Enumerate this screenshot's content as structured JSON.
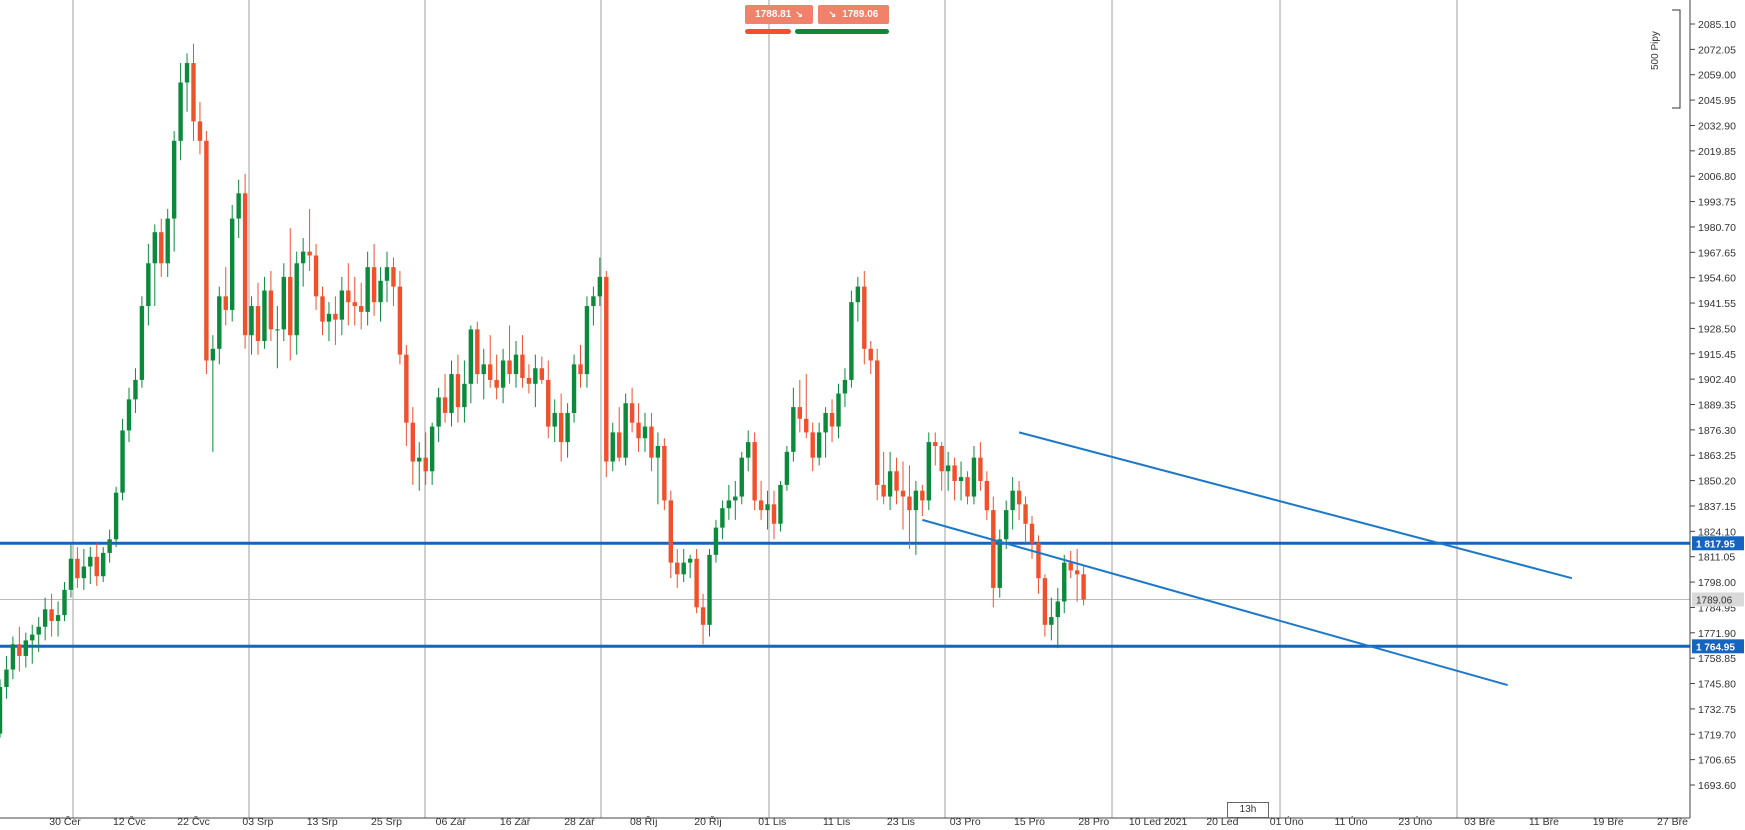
{
  "quotes": {
    "sell": {
      "value": "1788.81",
      "arrow": "↘"
    },
    "buy": {
      "value": "1789.06",
      "arrow": "↘"
    }
  },
  "colors": {
    "bull": "#0a8a3a",
    "bear": "#f0502a",
    "level_line": "#1565c0",
    "trend_line": "#1e78c8",
    "grid": "#888888",
    "current_price": "#bbbbbb",
    "sell_bar": "#f0502a",
    "buy_bar": "#0a8a3a"
  },
  "timeframe": "13h",
  "pip_scale": "500 Pipy",
  "chart_data": {
    "type": "candlestick",
    "y_ticks": [
      "2085.10",
      "2072.05",
      "2059.00",
      "2045.95",
      "2032.90",
      "2019.85",
      "2006.80",
      "1993.75",
      "1980.70",
      "1967.65",
      "1954.60",
      "1941.55",
      "1928.50",
      "1915.45",
      "1902.40",
      "1889.35",
      "1876.30",
      "1863.25",
      "1850.20",
      "1837.15",
      "1824.10",
      "1811.05",
      "1798.00",
      "1784.95",
      "1771.90",
      "1758.85",
      "1745.80",
      "1732.75",
      "1719.70",
      "1706.65",
      "1693.60"
    ],
    "x_labels": [
      "30 Čer",
      "12 Čvc",
      "22 Čvc",
      "03 Srp",
      "13 Srp",
      "25 Srp",
      "06 Zář",
      "16 Zář",
      "28 Zář",
      "08 Říj",
      "20 Říj",
      "01 Lis",
      "11 Lis",
      "23 Lis",
      "03 Pro",
      "15 Pro",
      "28 Pro",
      "10 Led 2021",
      "20 Led",
      "01 Úno",
      "11 Úno",
      "23 Úno",
      "03 Bře",
      "11 Bře",
      "19 Bře",
      "27 Bře"
    ],
    "levels": [
      {
        "label": "1 817.95",
        "value": 1817.95
      },
      {
        "label": "1 764.95",
        "value": 1764.95
      }
    ],
    "current_price": {
      "label": "1789.06",
      "value": 1789.06
    },
    "candles": [
      {
        "o": 1720,
        "h": 1748,
        "l": 1718,
        "c": 1744
      },
      {
        "o": 1744,
        "h": 1760,
        "l": 1738,
        "c": 1753
      },
      {
        "o": 1753,
        "h": 1770,
        "l": 1748,
        "c": 1766
      },
      {
        "o": 1766,
        "h": 1775,
        "l": 1752,
        "c": 1760
      },
      {
        "o": 1760,
        "h": 1772,
        "l": 1754,
        "c": 1768
      },
      {
        "o": 1768,
        "h": 1776,
        "l": 1756,
        "c": 1771
      },
      {
        "o": 1771,
        "h": 1780,
        "l": 1762,
        "c": 1775
      },
      {
        "o": 1775,
        "h": 1790,
        "l": 1768,
        "c": 1784
      },
      {
        "o": 1784,
        "h": 1792,
        "l": 1770,
        "c": 1778
      },
      {
        "o": 1778,
        "h": 1788,
        "l": 1770,
        "c": 1781
      },
      {
        "o": 1781,
        "h": 1798,
        "l": 1778,
        "c": 1794
      },
      {
        "o": 1794,
        "h": 1818,
        "l": 1790,
        "c": 1810
      },
      {
        "o": 1810,
        "h": 1816,
        "l": 1795,
        "c": 1800
      },
      {
        "o": 1800,
        "h": 1815,
        "l": 1794,
        "c": 1806
      },
      {
        "o": 1806,
        "h": 1816,
        "l": 1797,
        "c": 1811
      },
      {
        "o": 1811,
        "h": 1818,
        "l": 1796,
        "c": 1801
      },
      {
        "o": 1801,
        "h": 1816,
        "l": 1798,
        "c": 1813
      },
      {
        "o": 1813,
        "h": 1825,
        "l": 1808,
        "c": 1820
      },
      {
        "o": 1820,
        "h": 1847,
        "l": 1816,
        "c": 1844
      },
      {
        "o": 1844,
        "h": 1882,
        "l": 1840,
        "c": 1876
      },
      {
        "o": 1876,
        "h": 1898,
        "l": 1870,
        "c": 1892
      },
      {
        "o": 1892,
        "h": 1908,
        "l": 1885,
        "c": 1902
      },
      {
        "o": 1902,
        "h": 1945,
        "l": 1898,
        "c": 1940
      },
      {
        "o": 1940,
        "h": 1972,
        "l": 1930,
        "c": 1962
      },
      {
        "o": 1962,
        "h": 1982,
        "l": 1940,
        "c": 1978
      },
      {
        "o": 1978,
        "h": 1985,
        "l": 1955,
        "c": 1962
      },
      {
        "o": 1962,
        "h": 1990,
        "l": 1955,
        "c": 1985
      },
      {
        "o": 1985,
        "h": 2030,
        "l": 1968,
        "c": 2025
      },
      {
        "o": 2025,
        "h": 2065,
        "l": 2015,
        "c": 2055
      },
      {
        "o": 2055,
        "h": 2070,
        "l": 2040,
        "c": 2065
      },
      {
        "o": 2065,
        "h": 2075,
        "l": 2025,
        "c": 2035
      },
      {
        "o": 2035,
        "h": 2045,
        "l": 2018,
        "c": 2025
      },
      {
        "o": 2025,
        "h": 2030,
        "l": 1905,
        "c": 1912
      },
      {
        "o": 1912,
        "h": 1925,
        "l": 1865,
        "c": 1918
      },
      {
        "o": 1918,
        "h": 1950,
        "l": 1910,
        "c": 1945
      },
      {
        "o": 1945,
        "h": 1960,
        "l": 1930,
        "c": 1938
      },
      {
        "o": 1938,
        "h": 1992,
        "l": 1932,
        "c": 1985
      },
      {
        "o": 1985,
        "h": 2005,
        "l": 1975,
        "c": 1998
      },
      {
        "o": 1998,
        "h": 2008,
        "l": 1918,
        "c": 1925
      },
      {
        "o": 1925,
        "h": 1945,
        "l": 1915,
        "c": 1940
      },
      {
        "o": 1940,
        "h": 1952,
        "l": 1915,
        "c": 1922
      },
      {
        "o": 1922,
        "h": 1955,
        "l": 1918,
        "c": 1948
      },
      {
        "o": 1948,
        "h": 1958,
        "l": 1922,
        "c": 1928
      },
      {
        "o": 1928,
        "h": 1940,
        "l": 1908,
        "c": 1928
      },
      {
        "o": 1928,
        "h": 1962,
        "l": 1922,
        "c": 1955
      },
      {
        "o": 1955,
        "h": 1980,
        "l": 1912,
        "c": 1925
      },
      {
        "o": 1925,
        "h": 1968,
        "l": 1915,
        "c": 1962
      },
      {
        "o": 1962,
        "h": 1975,
        "l": 1950,
        "c": 1968
      },
      {
        "o": 1968,
        "h": 1990,
        "l": 1958,
        "c": 1966
      },
      {
        "o": 1966,
        "h": 1972,
        "l": 1938,
        "c": 1945
      },
      {
        "o": 1945,
        "h": 1950,
        "l": 1925,
        "c": 1932
      },
      {
        "o": 1932,
        "h": 1942,
        "l": 1922,
        "c": 1936
      },
      {
        "o": 1936,
        "h": 1945,
        "l": 1920,
        "c": 1933
      },
      {
        "o": 1933,
        "h": 1955,
        "l": 1925,
        "c": 1948
      },
      {
        "o": 1948,
        "h": 1962,
        "l": 1930,
        "c": 1942
      },
      {
        "o": 1942,
        "h": 1955,
        "l": 1930,
        "c": 1940
      },
      {
        "o": 1940,
        "h": 1952,
        "l": 1928,
        "c": 1937
      },
      {
        "o": 1937,
        "h": 1968,
        "l": 1930,
        "c": 1960
      },
      {
        "o": 1960,
        "h": 1972,
        "l": 1935,
        "c": 1942
      },
      {
        "o": 1942,
        "h": 1960,
        "l": 1932,
        "c": 1953
      },
      {
        "o": 1953,
        "h": 1968,
        "l": 1942,
        "c": 1960
      },
      {
        "o": 1960,
        "h": 1965,
        "l": 1940,
        "c": 1950
      },
      {
        "o": 1950,
        "h": 1958,
        "l": 1910,
        "c": 1915
      },
      {
        "o": 1915,
        "h": 1920,
        "l": 1868,
        "c": 1880
      },
      {
        "o": 1880,
        "h": 1888,
        "l": 1848,
        "c": 1860
      },
      {
        "o": 1860,
        "h": 1870,
        "l": 1845,
        "c": 1862
      },
      {
        "o": 1862,
        "h": 1875,
        "l": 1848,
        "c": 1855
      },
      {
        "o": 1855,
        "h": 1880,
        "l": 1848,
        "c": 1878
      },
      {
        "o": 1878,
        "h": 1898,
        "l": 1870,
        "c": 1893
      },
      {
        "o": 1893,
        "h": 1905,
        "l": 1880,
        "c": 1885
      },
      {
        "o": 1885,
        "h": 1912,
        "l": 1878,
        "c": 1905
      },
      {
        "o": 1905,
        "h": 1915,
        "l": 1880,
        "c": 1888
      },
      {
        "o": 1888,
        "h": 1912,
        "l": 1880,
        "c": 1900
      },
      {
        "o": 1900,
        "h": 1930,
        "l": 1890,
        "c": 1928
      },
      {
        "o": 1928,
        "h": 1932,
        "l": 1900,
        "c": 1905
      },
      {
        "o": 1905,
        "h": 1918,
        "l": 1892,
        "c": 1910
      },
      {
        "o": 1910,
        "h": 1925,
        "l": 1898,
        "c": 1902
      },
      {
        "o": 1902,
        "h": 1915,
        "l": 1892,
        "c": 1898
      },
      {
        "o": 1898,
        "h": 1918,
        "l": 1890,
        "c": 1912
      },
      {
        "o": 1912,
        "h": 1930,
        "l": 1900,
        "c": 1905
      },
      {
        "o": 1905,
        "h": 1922,
        "l": 1898,
        "c": 1915
      },
      {
        "o": 1915,
        "h": 1925,
        "l": 1898,
        "c": 1903
      },
      {
        "o": 1903,
        "h": 1910,
        "l": 1895,
        "c": 1900
      },
      {
        "o": 1900,
        "h": 1915,
        "l": 1888,
        "c": 1908
      },
      {
        "o": 1908,
        "h": 1914,
        "l": 1900,
        "c": 1902
      },
      {
        "o": 1902,
        "h": 1912,
        "l": 1872,
        "c": 1878
      },
      {
        "o": 1878,
        "h": 1892,
        "l": 1870,
        "c": 1885
      },
      {
        "o": 1885,
        "h": 1895,
        "l": 1860,
        "c": 1870
      },
      {
        "o": 1870,
        "h": 1890,
        "l": 1862,
        "c": 1885
      },
      {
        "o": 1885,
        "h": 1915,
        "l": 1880,
        "c": 1910
      },
      {
        "o": 1910,
        "h": 1920,
        "l": 1898,
        "c": 1905
      },
      {
        "o": 1905,
        "h": 1945,
        "l": 1898,
        "c": 1940
      },
      {
        "o": 1940,
        "h": 1950,
        "l": 1930,
        "c": 1945
      },
      {
        "o": 1945,
        "h": 1965,
        "l": 1940,
        "c": 1955
      },
      {
        "o": 1955,
        "h": 1958,
        "l": 1852,
        "c": 1860
      },
      {
        "o": 1860,
        "h": 1880,
        "l": 1855,
        "c": 1875
      },
      {
        "o": 1875,
        "h": 1888,
        "l": 1860,
        "c": 1862
      },
      {
        "o": 1862,
        "h": 1895,
        "l": 1858,
        "c": 1890
      },
      {
        "o": 1890,
        "h": 1898,
        "l": 1875,
        "c": 1880
      },
      {
        "o": 1880,
        "h": 1890,
        "l": 1865,
        "c": 1872
      },
      {
        "o": 1872,
        "h": 1885,
        "l": 1865,
        "c": 1878
      },
      {
        "o": 1878,
        "h": 1885,
        "l": 1855,
        "c": 1862
      },
      {
        "o": 1862,
        "h": 1875,
        "l": 1838,
        "c": 1868
      },
      {
        "o": 1868,
        "h": 1872,
        "l": 1835,
        "c": 1840
      },
      {
        "o": 1840,
        "h": 1845,
        "l": 1800,
        "c": 1808
      },
      {
        "o": 1808,
        "h": 1815,
        "l": 1795,
        "c": 1802
      },
      {
        "o": 1802,
        "h": 1815,
        "l": 1798,
        "c": 1808
      },
      {
        "o": 1808,
        "h": 1812,
        "l": 1800,
        "c": 1810
      },
      {
        "o": 1810,
        "h": 1815,
        "l": 1782,
        "c": 1785
      },
      {
        "o": 1785,
        "h": 1792,
        "l": 1766,
        "c": 1776
      },
      {
        "o": 1776,
        "h": 1815,
        "l": 1770,
        "c": 1812
      },
      {
        "o": 1812,
        "h": 1830,
        "l": 1808,
        "c": 1826
      },
      {
        "o": 1826,
        "h": 1840,
        "l": 1820,
        "c": 1836
      },
      {
        "o": 1836,
        "h": 1848,
        "l": 1830,
        "c": 1840
      },
      {
        "o": 1840,
        "h": 1850,
        "l": 1830,
        "c": 1842
      },
      {
        "o": 1842,
        "h": 1865,
        "l": 1838,
        "c": 1862
      },
      {
        "o": 1862,
        "h": 1876,
        "l": 1855,
        "c": 1870
      },
      {
        "o": 1870,
        "h": 1875,
        "l": 1835,
        "c": 1840
      },
      {
        "o": 1840,
        "h": 1850,
        "l": 1830,
        "c": 1835
      },
      {
        "o": 1835,
        "h": 1845,
        "l": 1825,
        "c": 1838
      },
      {
        "o": 1838,
        "h": 1845,
        "l": 1820,
        "c": 1828
      },
      {
        "o": 1828,
        "h": 1850,
        "l": 1824,
        "c": 1848
      },
      {
        "o": 1848,
        "h": 1868,
        "l": 1845,
        "c": 1865
      },
      {
        "o": 1865,
        "h": 1898,
        "l": 1860,
        "c": 1888
      },
      {
        "o": 1888,
        "h": 1902,
        "l": 1875,
        "c": 1882
      },
      {
        "o": 1882,
        "h": 1905,
        "l": 1872,
        "c": 1875
      },
      {
        "o": 1875,
        "h": 1880,
        "l": 1855,
        "c": 1862
      },
      {
        "o": 1862,
        "h": 1880,
        "l": 1858,
        "c": 1875
      },
      {
        "o": 1875,
        "h": 1888,
        "l": 1862,
        "c": 1885
      },
      {
        "o": 1885,
        "h": 1892,
        "l": 1870,
        "c": 1878
      },
      {
        "o": 1878,
        "h": 1900,
        "l": 1872,
        "c": 1895
      },
      {
        "o": 1895,
        "h": 1908,
        "l": 1888,
        "c": 1902
      },
      {
        "o": 1902,
        "h": 1948,
        "l": 1898,
        "c": 1942
      },
      {
        "o": 1942,
        "h": 1955,
        "l": 1932,
        "c": 1950
      },
      {
        "o": 1950,
        "h": 1958,
        "l": 1910,
        "c": 1918
      },
      {
        "o": 1918,
        "h": 1922,
        "l": 1905,
        "c": 1912
      },
      {
        "o": 1912,
        "h": 1918,
        "l": 1840,
        "c": 1848
      },
      {
        "o": 1848,
        "h": 1865,
        "l": 1838,
        "c": 1842
      },
      {
        "o": 1842,
        "h": 1865,
        "l": 1835,
        "c": 1855
      },
      {
        "o": 1855,
        "h": 1862,
        "l": 1838,
        "c": 1845
      },
      {
        "o": 1845,
        "h": 1860,
        "l": 1825,
        "c": 1842
      },
      {
        "o": 1842,
        "h": 1858,
        "l": 1815,
        "c": 1835
      },
      {
        "o": 1835,
        "h": 1850,
        "l": 1812,
        "c": 1845
      },
      {
        "o": 1845,
        "h": 1848,
        "l": 1832,
        "c": 1840
      },
      {
        "o": 1840,
        "h": 1875,
        "l": 1835,
        "c": 1870
      },
      {
        "o": 1870,
        "h": 1875,
        "l": 1858,
        "c": 1868
      },
      {
        "o": 1868,
        "h": 1870,
        "l": 1845,
        "c": 1855
      },
      {
        "o": 1855,
        "h": 1865,
        "l": 1845,
        "c": 1858
      },
      {
        "o": 1858,
        "h": 1862,
        "l": 1840,
        "c": 1850
      },
      {
        "o": 1850,
        "h": 1860,
        "l": 1840,
        "c": 1852
      },
      {
        "o": 1852,
        "h": 1855,
        "l": 1838,
        "c": 1842
      },
      {
        "o": 1842,
        "h": 1868,
        "l": 1838,
        "c": 1862
      },
      {
        "o": 1862,
        "h": 1870,
        "l": 1845,
        "c": 1850
      },
      {
        "o": 1850,
        "h": 1855,
        "l": 1830,
        "c": 1835
      },
      {
        "o": 1835,
        "h": 1842,
        "l": 1785,
        "c": 1795
      },
      {
        "o": 1795,
        "h": 1825,
        "l": 1790,
        "c": 1820
      },
      {
        "o": 1820,
        "h": 1840,
        "l": 1815,
        "c": 1835
      },
      {
        "o": 1835,
        "h": 1852,
        "l": 1825,
        "c": 1845
      },
      {
        "o": 1845,
        "h": 1850,
        "l": 1830,
        "c": 1838
      },
      {
        "o": 1838,
        "h": 1842,
        "l": 1818,
        "c": 1828
      },
      {
        "o": 1828,
        "h": 1832,
        "l": 1810,
        "c": 1818
      },
      {
        "o": 1818,
        "h": 1822,
        "l": 1792,
        "c": 1800
      },
      {
        "o": 1800,
        "h": 1802,
        "l": 1770,
        "c": 1776
      },
      {
        "o": 1776,
        "h": 1790,
        "l": 1768,
        "c": 1780
      },
      {
        "o": 1780,
        "h": 1795,
        "l": 1764,
        "c": 1788
      },
      {
        "o": 1788,
        "h": 1812,
        "l": 1782,
        "c": 1808
      },
      {
        "o": 1808,
        "h": 1814,
        "l": 1800,
        "c": 1804
      },
      {
        "o": 1804,
        "h": 1815,
        "l": 1788,
        "c": 1802
      },
      {
        "o": 1802,
        "h": 1806,
        "l": 1786,
        "c": 1789
      }
    ],
    "trend_lines": [
      {
        "from": {
          "candle": 158,
          "value": 1875
        },
        "to": {
          "x_label": "11 Bře",
          "value": 1800
        }
      },
      {
        "from": {
          "candle": 143,
          "value": 1830
        },
        "to": {
          "x_label": "03 Bře",
          "value": 1745
        }
      }
    ]
  }
}
